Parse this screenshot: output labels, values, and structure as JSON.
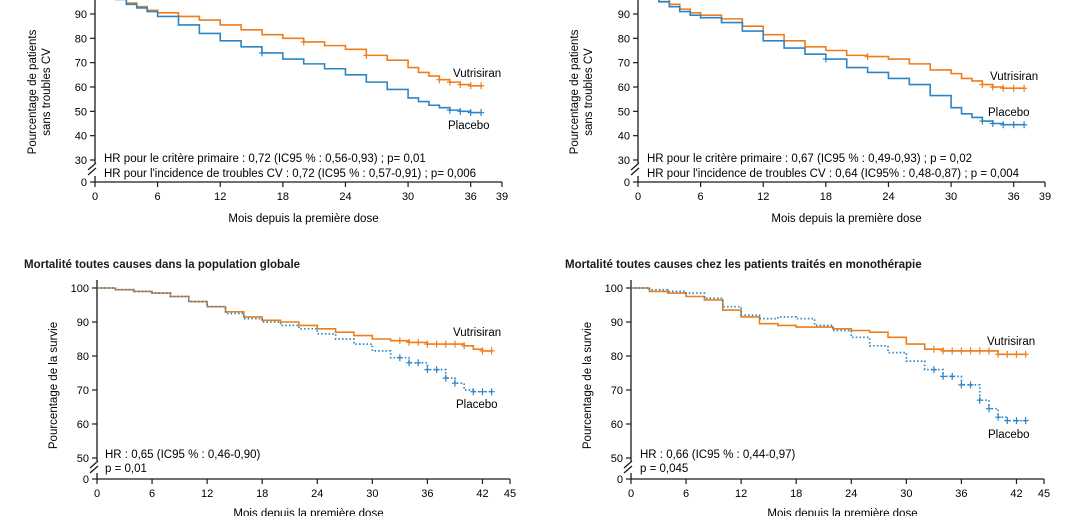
{
  "colors": {
    "vutrisiran": "#ef7d1a",
    "placebo": "#2b86c5",
    "axis": "#1a1a1a"
  },
  "panels": {
    "cv_global": {
      "title": "",
      "chart_data": {
        "type": "line",
        "xlabel": "Mois depuis la première dose",
        "ylabel_line1": "Pourcentage de patients",
        "ylabel_line2": "sans troubles CV",
        "xlim": [
          0,
          39
        ],
        "ylim": [
          30,
          100
        ],
        "x_ticks": [
          0,
          6,
          12,
          18,
          24,
          30,
          36,
          39
        ],
        "y_ticks": [
          30,
          40,
          50,
          60,
          70,
          80,
          90
        ],
        "y_break_value": 0,
        "annotations": [
          "HR pour le critère primaire : 0,72 (IC95 % : 0,56-0,93) ; p= 0,01",
          "HR pour l'incidence de troubles CV : 0,72 (IC95 % : 0,57-0,91) ; p= 0,006"
        ],
        "series": [
          {
            "name": "Vutrisiran",
            "style": "solid",
            "color": "#ef7d1a",
            "x": [
              0,
              1,
              2,
              3,
              4,
              5,
              6,
              8,
              10,
              12,
              14,
              16,
              18,
              20,
              22,
              24,
              26,
              28,
              30,
              31,
              32,
              33,
              34,
              35,
              36,
              37
            ],
            "y": [
              100,
              98.5,
              96.5,
              94.5,
              93,
              91.5,
              90.5,
              89,
              87.5,
              85.5,
              83.5,
              81.5,
              80,
              78.5,
              77,
              75.5,
              73,
              71,
              68,
              66,
              64.5,
              63,
              62,
              61,
              60.5,
              60.5
            ],
            "censor_x": [
              20,
              26,
              33,
              34,
              35,
              36,
              37
            ]
          },
          {
            "name": "Placebo",
            "style": "solid",
            "color": "#2b86c5",
            "x": [
              0,
              1,
              2,
              3,
              4,
              5,
              6,
              8,
              10,
              12,
              14,
              16,
              18,
              20,
              22,
              24,
              26,
              28,
              30,
              31,
              32,
              33,
              34,
              35,
              36,
              37
            ],
            "y": [
              100,
              98,
              96,
              94,
              92.5,
              91,
              89,
              85.5,
              82,
              79,
              76.5,
              74,
              71.5,
              69.5,
              67.5,
              65,
              62,
              59,
              55.5,
              54,
              52.5,
              51.5,
              50.5,
              50,
              49.5,
              49.5
            ],
            "censor_x": [
              16,
              34,
              35,
              36,
              37
            ]
          }
        ],
        "legend_labels": [
          "Vutrisiran",
          "Placebo"
        ]
      }
    },
    "cv_mono": {
      "title": "",
      "chart_data": {
        "type": "line",
        "xlabel": "Mois depuis la première dose",
        "ylabel_line1": "Pourcentage de patients",
        "ylabel_line2": "sans troubles CV",
        "xlim": [
          0,
          39
        ],
        "ylim": [
          30,
          100
        ],
        "x_ticks": [
          0,
          6,
          12,
          18,
          24,
          30,
          36,
          39
        ],
        "y_ticks": [
          30,
          40,
          50,
          60,
          70,
          80,
          90
        ],
        "y_break_value": 0,
        "annotations": [
          "HR pour le critère primaire : 0,67 (IC95 % : 0,49-0,93) ; p = 0,02",
          "HR pour l'incidence de troubles CV : 0,64 (IC95% : 0,48-0,87) ; p = 0,004"
        ],
        "series": [
          {
            "name": "Vutrisiran",
            "style": "solid",
            "color": "#ef7d1a",
            "x": [
              0,
              1,
              2,
              3,
              4,
              5,
              6,
              8,
              10,
              12,
              14,
              16,
              18,
              20,
              22,
              24,
              26,
              28,
              30,
              31,
              32,
              33,
              34,
              35,
              36,
              37
            ],
            "y": [
              100,
              98,
              96,
              94,
              92,
              90.5,
              89.5,
              88,
              85,
              81.5,
              79,
              76.5,
              75,
              73,
              72.5,
              71.5,
              69.5,
              67,
              65.5,
              63.5,
              62.5,
              61,
              60,
              59.5,
              59.5,
              59.5
            ],
            "censor_x": [
              6,
              22,
              33,
              34,
              35,
              36,
              37
            ]
          },
          {
            "name": "Placebo",
            "style": "solid",
            "color": "#2b86c5",
            "x": [
              0,
              1,
              2,
              3,
              4,
              5,
              6,
              8,
              10,
              12,
              14,
              16,
              18,
              20,
              22,
              24,
              26,
              28,
              30,
              31,
              32,
              33,
              34,
              35,
              36,
              37
            ],
            "y": [
              100,
              98,
              95,
              93,
              91,
              89.5,
              88.5,
              86.5,
              83,
              79,
              76,
              73.5,
              71.5,
              68,
              66,
              63.5,
              61,
              56.5,
              51.5,
              49,
              47.5,
              46,
              45,
              44.5,
              44.5,
              44.5
            ],
            "censor_x": [
              18,
              33,
              34,
              35,
              36,
              37
            ]
          }
        ],
        "legend_labels": [
          "Vutrisiran",
          "Placebo"
        ]
      }
    },
    "mort_global": {
      "title": "Mortalité toutes causes dans la population globale",
      "chart_data": {
        "type": "line",
        "xlabel": "Mois depuis la première dose",
        "ylabel_line1": "Pourcentage de la survie",
        "ylabel_line2": "",
        "xlim": [
          0,
          45
        ],
        "ylim": [
          50,
          100
        ],
        "x_ticks": [
          0,
          6,
          12,
          18,
          24,
          30,
          36,
          42,
          45
        ],
        "y_ticks": [
          50,
          60,
          70,
          80,
          90,
          100
        ],
        "y_break_value": 0,
        "annotations": [
          "HR : 0,65 (IC95 % : 0,46-0,90)",
          "p = 0,01"
        ],
        "series": [
          {
            "name": "Vutrisiran",
            "style": "solid",
            "color": "#ef7d1a",
            "x": [
              0,
              2,
              4,
              6,
              8,
              10,
              12,
              14,
              16,
              18,
              20,
              22,
              24,
              26,
              28,
              30,
              32,
              34,
              36,
              38,
              40,
              41,
              42,
              43
            ],
            "y": [
              100,
              99.5,
              99,
              98.5,
              97.5,
              96,
              94.5,
              93,
              91.5,
              90.5,
              90,
              89,
              88,
              87,
              86,
              85,
              84.5,
              84,
              83.5,
              83.5,
              83,
              82,
              81.5,
              81.5
            ],
            "censor_x": [
              33,
              34,
              35,
              36,
              37,
              38,
              39,
              40,
              42,
              43
            ]
          },
          {
            "name": "Placebo",
            "style": "dotted",
            "color": "#2b86c5",
            "x": [
              0,
              2,
              4,
              6,
              8,
              10,
              12,
              14,
              16,
              18,
              20,
              22,
              24,
              26,
              28,
              30,
              32,
              34,
              36,
              38,
              39,
              40,
              41,
              42,
              43
            ],
            "y": [
              100,
              99.5,
              99,
              98.5,
              97.5,
              96,
              94.5,
              92.5,
              91,
              90,
              89,
              88,
              86.5,
              85,
              83.5,
              81.5,
              79.5,
              78,
              76,
              73.5,
              72,
              70,
              69.5,
              69.5,
              69.5
            ],
            "censor_x": [
              33,
              34,
              35,
              36,
              37,
              38,
              39,
              41,
              42,
              43
            ]
          }
        ],
        "legend_labels": [
          "Vutrisiran",
          "Placebo"
        ]
      }
    },
    "mort_mono": {
      "title": "Mortalité toutes causes chez les patients traités en monothérapie",
      "chart_data": {
        "type": "line",
        "xlabel": "Mois depuis la première dose",
        "ylabel_line1": "Pourcentage de la survie",
        "ylabel_line2": "",
        "xlim": [
          0,
          45
        ],
        "ylim": [
          50,
          100
        ],
        "x_ticks": [
          0,
          6,
          12,
          18,
          24,
          30,
          36,
          42,
          45
        ],
        "y_ticks": [
          50,
          60,
          70,
          80,
          90,
          100
        ],
        "y_break_value": 0,
        "annotations": [
          "HR : 0,66 (IC95 % : 0,44-0,97)",
          "p = 0,045"
        ],
        "series": [
          {
            "name": "Vutrisiran",
            "style": "solid",
            "color": "#ef7d1a",
            "x": [
              0,
              2,
              4,
              6,
              8,
              10,
              12,
              14,
              16,
              18,
              20,
              22,
              24,
              26,
              28,
              30,
              32,
              34,
              36,
              38,
              40,
              42,
              43
            ],
            "y": [
              100,
              99,
              98.5,
              97.5,
              96.5,
              93.5,
              91.5,
              89.5,
              89,
              88.5,
              88.5,
              88,
              87.5,
              87,
              85.5,
              83.5,
              82,
              81.5,
              81.5,
              81.5,
              80.5,
              80.5,
              80.5
            ],
            "censor_x": [
              33,
              34,
              35,
              36,
              37,
              38,
              39,
              40,
              41,
              42,
              43
            ]
          },
          {
            "name": "Placebo",
            "style": "dotted",
            "color": "#2b86c5",
            "x": [
              0,
              2,
              4,
              6,
              8,
              10,
              12,
              14,
              16,
              18,
              20,
              22,
              24,
              26,
              28,
              30,
              32,
              34,
              36,
              38,
              39,
              40,
              41,
              42,
              43
            ],
            "y": [
              100,
              99.5,
              99,
              98.5,
              97,
              94.5,
              92,
              91,
              91.5,
              91,
              89,
              87.5,
              85.5,
              83,
              81,
              78.5,
              76,
              74,
              71.5,
              67,
              64.5,
              62,
              61,
              61,
              61
            ],
            "censor_x": [
              33,
              34,
              35,
              36,
              37,
              38,
              39,
              40,
              41,
              42,
              43
            ]
          }
        ],
        "legend_labels": [
          "Vutrisiran",
          "Placebo"
        ]
      }
    }
  }
}
